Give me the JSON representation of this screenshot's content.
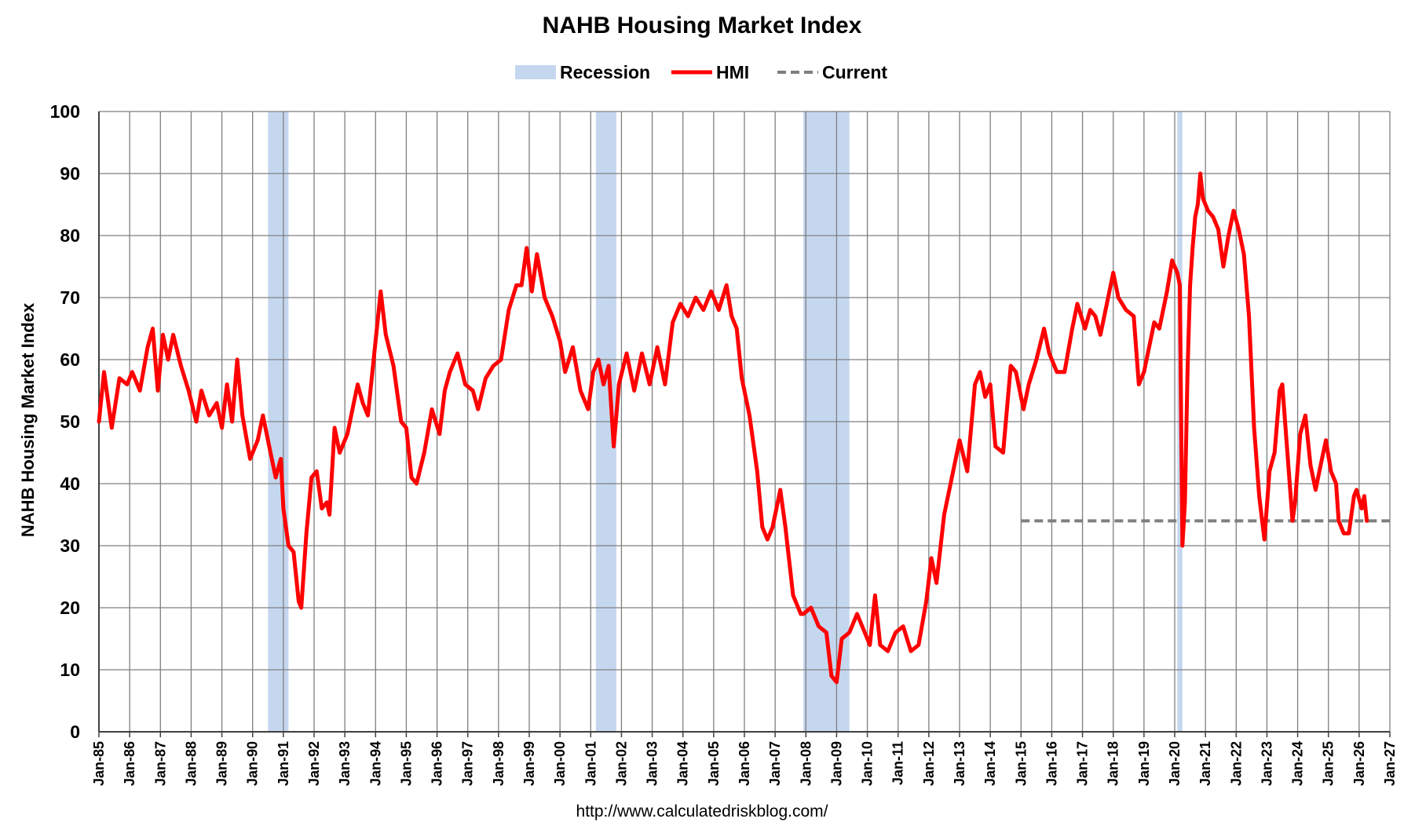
{
  "chart_data": {
    "type": "line",
    "title": "NAHB Housing Market Index",
    "ylabel": "NAHB Housing Market Index",
    "xlabel": "",
    "source": "http://www.calculatedriskblog.com/",
    "ylim": [
      0,
      100
    ],
    "yticks": [
      0,
      10,
      20,
      30,
      40,
      50,
      60,
      70,
      80,
      90,
      100
    ],
    "xlim": [
      "1985-01",
      "2027-01"
    ],
    "x_tick_labels": [
      "Jan-85",
      "Jan-86",
      "Jan-87",
      "Jan-88",
      "Jan-89",
      "Jan-90",
      "Jan-91",
      "Jan-92",
      "Jan-93",
      "Jan-94",
      "Jan-95",
      "Jan-96",
      "Jan-97",
      "Jan-98",
      "Jan-99",
      "Jan-00",
      "Jan-01",
      "Jan-02",
      "Jan-03",
      "Jan-04",
      "Jan-05",
      "Jan-06",
      "Jan-07",
      "Jan-08",
      "Jan-09",
      "Jan-10",
      "Jan-11",
      "Jan-12",
      "Jan-13",
      "Jan-14",
      "Jan-15",
      "Jan-16",
      "Jan-17",
      "Jan-18",
      "Jan-19",
      "Jan-20",
      "Jan-21",
      "Jan-22",
      "Jan-23",
      "Jan-24",
      "Jan-25",
      "Jan-26",
      "Jan-27"
    ],
    "grid": true,
    "legend_position": "top-center",
    "legend": [
      {
        "key": "recession",
        "label": "Recession",
        "color": "#c5d7ef"
      },
      {
        "key": "hmi",
        "label": "HMI",
        "color": "#ff0000"
      },
      {
        "key": "current",
        "label": "Current",
        "color": "#7f7f7f"
      }
    ],
    "recessions": [
      {
        "start": "1990-07",
        "end": "1991-03"
      },
      {
        "start": "2001-03",
        "end": "2001-11"
      },
      {
        "start": "2007-12",
        "end": "2009-06"
      },
      {
        "start": "2020-02",
        "end": "2020-04"
      }
    ],
    "current_line": {
      "name": "Current",
      "value": 34,
      "start": "2015-01",
      "end": "2027-01"
    },
    "series": [
      {
        "name": "HMI",
        "points": [
          [
            "1985-01",
            50
          ],
          [
            "1985-03",
            58
          ],
          [
            "1985-06",
            49
          ],
          [
            "1985-09",
            57
          ],
          [
            "1985-12",
            56
          ],
          [
            "1986-02",
            58
          ],
          [
            "1986-05",
            55
          ],
          [
            "1986-08",
            62
          ],
          [
            "1986-10",
            65
          ],
          [
            "1986-12",
            55
          ],
          [
            "1987-02",
            64
          ],
          [
            "1987-04",
            60
          ],
          [
            "1987-06",
            64
          ],
          [
            "1987-09",
            59
          ],
          [
            "1987-12",
            55
          ],
          [
            "1988-03",
            50
          ],
          [
            "1988-05",
            55
          ],
          [
            "1988-08",
            51
          ],
          [
            "1988-11",
            53
          ],
          [
            "1989-01",
            49
          ],
          [
            "1989-03",
            56
          ],
          [
            "1989-05",
            50
          ],
          [
            "1989-07",
            60
          ],
          [
            "1989-09",
            51
          ],
          [
            "1989-12",
            44
          ],
          [
            "1990-03",
            47
          ],
          [
            "1990-05",
            51
          ],
          [
            "1990-08",
            45
          ],
          [
            "1990-10",
            41
          ],
          [
            "1990-12",
            44
          ],
          [
            "1991-01",
            36
          ],
          [
            "1991-03",
            30
          ],
          [
            "1991-05",
            29
          ],
          [
            "1991-07",
            21
          ],
          [
            "1991-08",
            20
          ],
          [
            "1991-10",
            32
          ],
          [
            "1991-12",
            41
          ],
          [
            "1992-02",
            42
          ],
          [
            "1992-04",
            36
          ],
          [
            "1992-06",
            37
          ],
          [
            "1992-07",
            35
          ],
          [
            "1992-09",
            49
          ],
          [
            "1992-11",
            45
          ],
          [
            "1993-02",
            48
          ],
          [
            "1993-04",
            52
          ],
          [
            "1993-06",
            56
          ],
          [
            "1993-08",
            53
          ],
          [
            "1993-10",
            51
          ],
          [
            "1994-01",
            63
          ],
          [
            "1994-03",
            71
          ],
          [
            "1994-05",
            64
          ],
          [
            "1994-08",
            59
          ],
          [
            "1994-11",
            50
          ],
          [
            "1995-01",
            49
          ],
          [
            "1995-03",
            41
          ],
          [
            "1995-05",
            40
          ],
          [
            "1995-08",
            45
          ],
          [
            "1995-11",
            52
          ],
          [
            "1996-02",
            48
          ],
          [
            "1996-04",
            55
          ],
          [
            "1996-06",
            58
          ],
          [
            "1996-09",
            61
          ],
          [
            "1996-12",
            56
          ],
          [
            "1997-03",
            55
          ],
          [
            "1997-05",
            52
          ],
          [
            "1997-08",
            57
          ],
          [
            "1997-11",
            59
          ],
          [
            "1998-02",
            60
          ],
          [
            "1998-05",
            68
          ],
          [
            "1998-08",
            72
          ],
          [
            "1998-10",
            72
          ],
          [
            "1998-12",
            78
          ],
          [
            "1999-02",
            71
          ],
          [
            "1999-04",
            77
          ],
          [
            "1999-07",
            70
          ],
          [
            "1999-10",
            67
          ],
          [
            "2000-01",
            63
          ],
          [
            "2000-03",
            58
          ],
          [
            "2000-06",
            62
          ],
          [
            "2000-09",
            55
          ],
          [
            "2000-12",
            52
          ],
          [
            "2001-02",
            58
          ],
          [
            "2001-04",
            60
          ],
          [
            "2001-06",
            56
          ],
          [
            "2001-08",
            59
          ],
          [
            "2001-10",
            46
          ],
          [
            "2001-12",
            56
          ],
          [
            "2002-03",
            61
          ],
          [
            "2002-06",
            55
          ],
          [
            "2002-09",
            61
          ],
          [
            "2002-12",
            56
          ],
          [
            "2003-03",
            62
          ],
          [
            "2003-06",
            56
          ],
          [
            "2003-09",
            66
          ],
          [
            "2003-12",
            69
          ],
          [
            "2004-03",
            67
          ],
          [
            "2004-06",
            70
          ],
          [
            "2004-09",
            68
          ],
          [
            "2004-12",
            71
          ],
          [
            "2005-03",
            68
          ],
          [
            "2005-06",
            72
          ],
          [
            "2005-08",
            67
          ],
          [
            "2005-10",
            65
          ],
          [
            "2005-12",
            57
          ],
          [
            "2006-03",
            51
          ],
          [
            "2006-06",
            42
          ],
          [
            "2006-08",
            33
          ],
          [
            "2006-10",
            31
          ],
          [
            "2006-12",
            33
          ],
          [
            "2007-03",
            39
          ],
          [
            "2007-05",
            33
          ],
          [
            "2007-08",
            22
          ],
          [
            "2007-11",
            19
          ],
          [
            "2007-12",
            19
          ],
          [
            "2008-03",
            20
          ],
          [
            "2008-06",
            17
          ],
          [
            "2008-09",
            16
          ],
          [
            "2008-11",
            9
          ],
          [
            "2009-01",
            8
          ],
          [
            "2009-03",
            15
          ],
          [
            "2009-06",
            16
          ],
          [
            "2009-09",
            19
          ],
          [
            "2009-11",
            17
          ],
          [
            "2010-02",
            14
          ],
          [
            "2010-04",
            22
          ],
          [
            "2010-06",
            14
          ],
          [
            "2010-09",
            13
          ],
          [
            "2010-12",
            16
          ],
          [
            "2011-03",
            17
          ],
          [
            "2011-06",
            13
          ],
          [
            "2011-09",
            14
          ],
          [
            "2011-12",
            21
          ],
          [
            "2012-02",
            28
          ],
          [
            "2012-04",
            24
          ],
          [
            "2012-07",
            35
          ],
          [
            "2012-10",
            41
          ],
          [
            "2013-01",
            47
          ],
          [
            "2013-04",
            42
          ],
          [
            "2013-07",
            56
          ],
          [
            "2013-09",
            58
          ],
          [
            "2013-11",
            54
          ],
          [
            "2014-01",
            56
          ],
          [
            "2014-03",
            46
          ],
          [
            "2014-06",
            45
          ],
          [
            "2014-09",
            59
          ],
          [
            "2014-11",
            58
          ],
          [
            "2015-02",
            52
          ],
          [
            "2015-04",
            56
          ],
          [
            "2015-07",
            60
          ],
          [
            "2015-10",
            65
          ],
          [
            "2015-12",
            61
          ],
          [
            "2016-03",
            58
          ],
          [
            "2016-06",
            58
          ],
          [
            "2016-09",
            65
          ],
          [
            "2016-11",
            69
          ],
          [
            "2017-02",
            65
          ],
          [
            "2017-04",
            68
          ],
          [
            "2017-06",
            67
          ],
          [
            "2017-08",
            64
          ],
          [
            "2017-11",
            70
          ],
          [
            "2018-01",
            74
          ],
          [
            "2018-03",
            70
          ],
          [
            "2018-06",
            68
          ],
          [
            "2018-09",
            67
          ],
          [
            "2018-11",
            56
          ],
          [
            "2019-01",
            58
          ],
          [
            "2019-03",
            62
          ],
          [
            "2019-05",
            66
          ],
          [
            "2019-07",
            65
          ],
          [
            "2019-10",
            71
          ],
          [
            "2019-12",
            76
          ],
          [
            "2020-02",
            74
          ],
          [
            "2020-03",
            72
          ],
          [
            "2020-04",
            30
          ],
          [
            "2020-05",
            37
          ],
          [
            "2020-06",
            58
          ],
          [
            "2020-07",
            72
          ],
          [
            "2020-08",
            78
          ],
          [
            "2020-09",
            83
          ],
          [
            "2020-10",
            85
          ],
          [
            "2020-11",
            90
          ],
          [
            "2020-12",
            86
          ],
          [
            "2021-02",
            84
          ],
          [
            "2021-04",
            83
          ],
          [
            "2021-06",
            81
          ],
          [
            "2021-08",
            75
          ],
          [
            "2021-10",
            80
          ],
          [
            "2021-12",
            84
          ],
          [
            "2022-02",
            81
          ],
          [
            "2022-04",
            77
          ],
          [
            "2022-06",
            67
          ],
          [
            "2022-08",
            49
          ],
          [
            "2022-10",
            38
          ],
          [
            "2022-12",
            31
          ],
          [
            "2023-02",
            42
          ],
          [
            "2023-04",
            45
          ],
          [
            "2023-06",
            55
          ],
          [
            "2023-07",
            56
          ],
          [
            "2023-09",
            45
          ],
          [
            "2023-11",
            34
          ],
          [
            "2023-12",
            37
          ],
          [
            "2024-02",
            48
          ],
          [
            "2024-04",
            51
          ],
          [
            "2024-06",
            43
          ],
          [
            "2024-08",
            39
          ],
          [
            "2024-10",
            43
          ],
          [
            "2024-12",
            47
          ],
          [
            "2025-02",
            42
          ],
          [
            "2025-04",
            40
          ],
          [
            "2025-05",
            34
          ],
          [
            "2025-07",
            32
          ],
          [
            "2025-09",
            32
          ],
          [
            "2025-11",
            38
          ],
          [
            "2025-12",
            39
          ],
          [
            "2026-02",
            36
          ],
          [
            "2026-03",
            38
          ],
          [
            "2026-04",
            34
          ]
        ]
      }
    ]
  },
  "colors": {
    "hmi": "#ff0000",
    "recession": "#c5d7ef",
    "current": "#7f7f7f",
    "grid": "#7f7f7f",
    "axis": "#404040"
  }
}
